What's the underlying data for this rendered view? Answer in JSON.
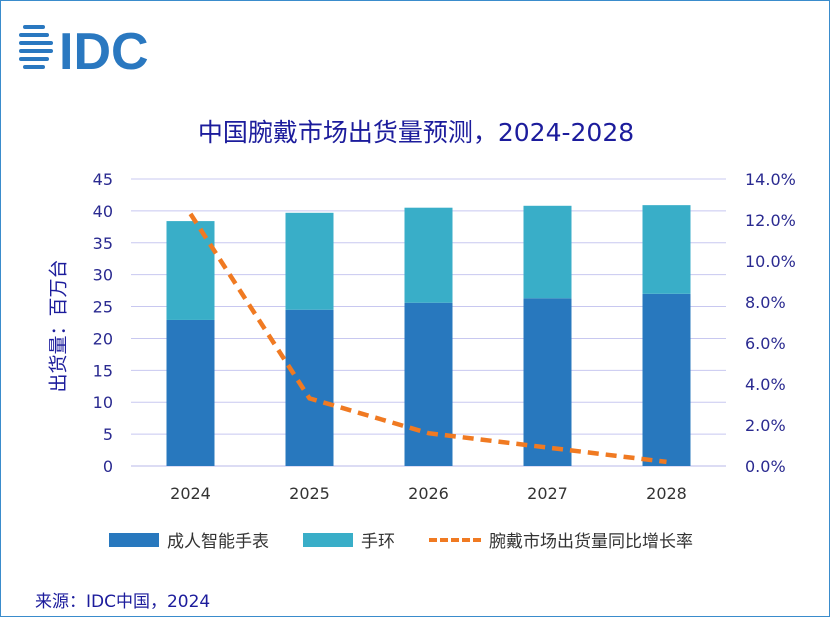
{
  "logo_text": "IDC",
  "chart_data": {
    "type": "bar",
    "stacked": true,
    "title": "中国腕戴市场出货量预测，2024-2028",
    "ylabel": "出货量：百万台",
    "xlabel": "",
    "categories": [
      "2024",
      "2025",
      "2026",
      "2027",
      "2028"
    ],
    "series": [
      {
        "name": "成人智能手表",
        "type": "bar",
        "axis": "left",
        "color": "#2878be",
        "values": [
          22.9,
          24.5,
          25.6,
          26.3,
          27.0
        ]
      },
      {
        "name": "手环",
        "type": "bar",
        "axis": "left",
        "color": "#39aec8",
        "values": [
          15.5,
          15.2,
          14.9,
          14.5,
          13.9
        ]
      },
      {
        "name": "腕戴市场出货量同比增长率",
        "type": "line",
        "axis": "right",
        "style": "dashed",
        "color": "#f07a22",
        "values": [
          12.3,
          3.3,
          1.6,
          0.9,
          0.2
        ]
      }
    ],
    "ylim": [
      0,
      45
    ],
    "yticks": [
      "0",
      "5",
      "10",
      "15",
      "20",
      "25",
      "30",
      "35",
      "40",
      "45"
    ],
    "y2lim": [
      0,
      14
    ],
    "y2ticks": [
      "0.0%",
      "2.0%",
      "4.0%",
      "6.0%",
      "8.0%",
      "10.0%",
      "12.0%",
      "14.0%"
    ],
    "grid": true,
    "legend": "bottom"
  },
  "source": "来源：IDC中国，2024"
}
